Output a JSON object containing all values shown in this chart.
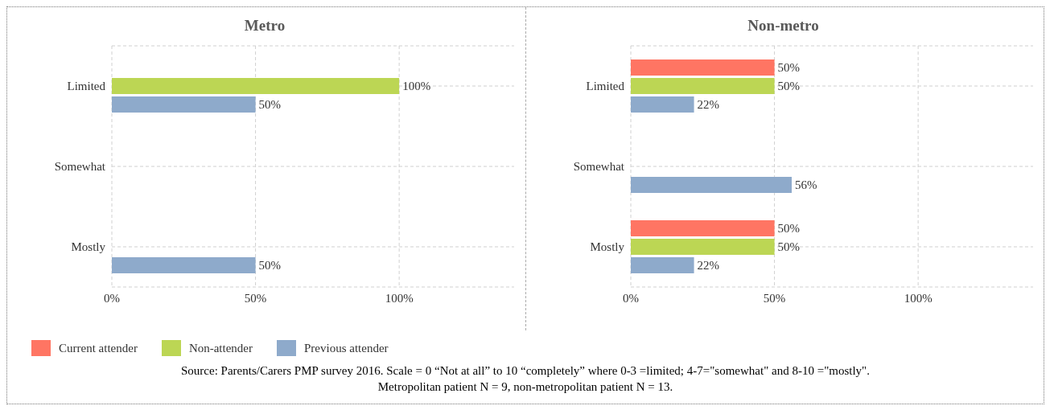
{
  "chart_data": [
    {
      "type": "bar",
      "title": "Metro",
      "orientation": "horizontal",
      "categories": [
        "Limited",
        "Somewhat",
        "Mostly"
      ],
      "xlim": [
        0,
        140
      ],
      "xticks": [
        {
          "value": 0,
          "label": "0%"
        },
        {
          "value": 50,
          "label": "50%"
        },
        {
          "value": 100,
          "label": "100%"
        }
      ],
      "grid": true,
      "legend": "bottom left",
      "series": [
        {
          "name": "Current attender",
          "color": "#ff7563",
          "values": [
            null,
            null,
            null
          ]
        },
        {
          "name": "Non-attender",
          "color": "#bcd654",
          "values": [
            100,
            null,
            null
          ],
          "value_labels": [
            "100%",
            null,
            null
          ]
        },
        {
          "name": "Previous attender",
          "color": "#8eaacb",
          "values": [
            50,
            null,
            50
          ],
          "value_labels": [
            "50%",
            null,
            "50%"
          ]
        }
      ],
      "annotations": [
        "Source: Parents/Carers PMP survey 2016.  Scale = 0 “Not at all” to 10 “completely” where 0-3 =limited; 4-7=\"somewhat\" and 8-10 =\"mostly\".",
        "Metropolitan patient N = 9, non-metropolitan patient N = 13."
      ]
    },
    {
      "type": "bar",
      "title": "Non-metro",
      "orientation": "horizontal",
      "categories": [
        "Limited",
        "Somewhat",
        "Mostly"
      ],
      "xlim": [
        0,
        140
      ],
      "xticks": [
        {
          "value": 0,
          "label": "0%"
        },
        {
          "value": 50,
          "label": "50%"
        },
        {
          "value": 100,
          "label": "100%"
        }
      ],
      "grid": true,
      "series": [
        {
          "color": "#ff7563",
          "values": [
            50,
            null,
            50
          ],
          "value_labels": [
            "50%",
            null,
            "50%"
          ]
        },
        {
          "color": "#bcd654",
          "values": [
            50,
            null,
            50
          ],
          "value_labels": [
            "50%",
            null,
            "50%"
          ]
        },
        {
          "color": "#8eaacb",
          "values": [
            22,
            56,
            22
          ],
          "value_labels": [
            "22%",
            "56%",
            "22%"
          ]
        }
      ]
    }
  ]
}
